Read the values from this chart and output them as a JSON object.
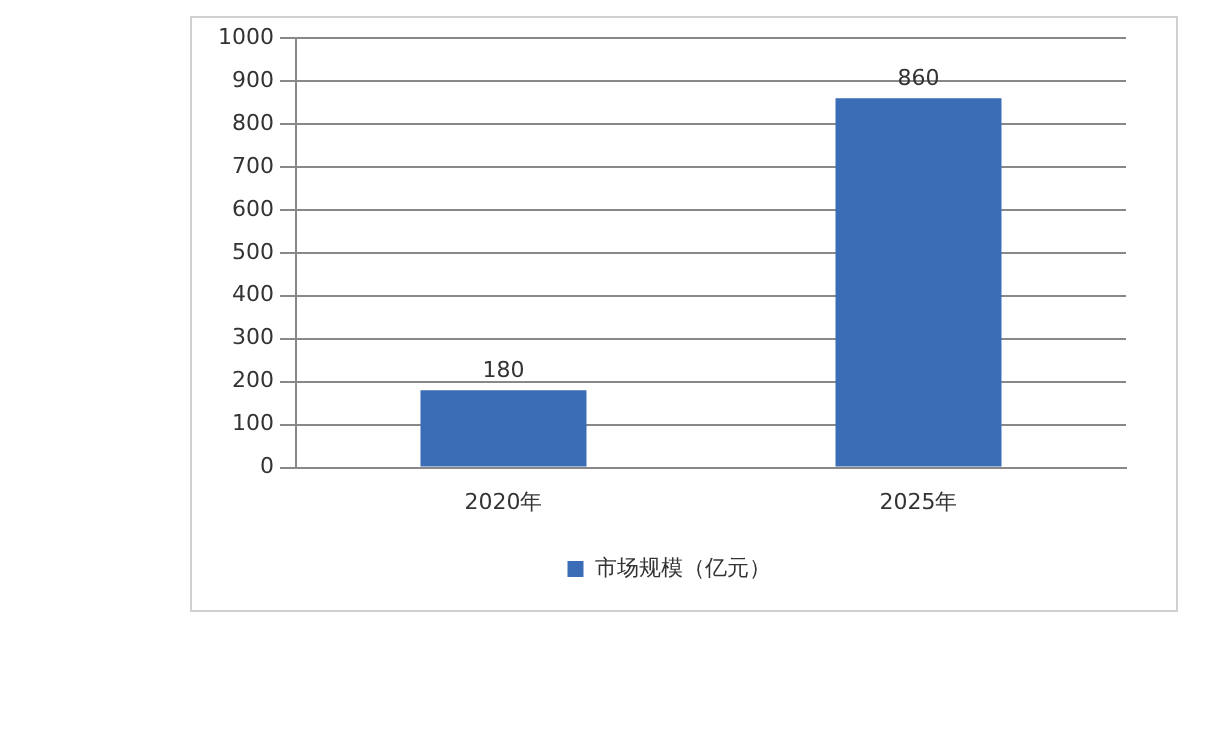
{
  "chart_data": {
    "type": "bar",
    "categories": [
      "2020年",
      "2025年"
    ],
    "series": [
      {
        "name": "市场规模（亿元）",
        "color": "#3a6db5",
        "values": [
          180,
          860
        ]
      }
    ],
    "ylim": [
      0,
      1000
    ],
    "yticks": [
      0,
      100,
      200,
      300,
      400,
      500,
      600,
      700,
      800,
      900,
      1000
    ],
    "grid": "y",
    "legend": "bottom",
    "data_labels": true
  }
}
